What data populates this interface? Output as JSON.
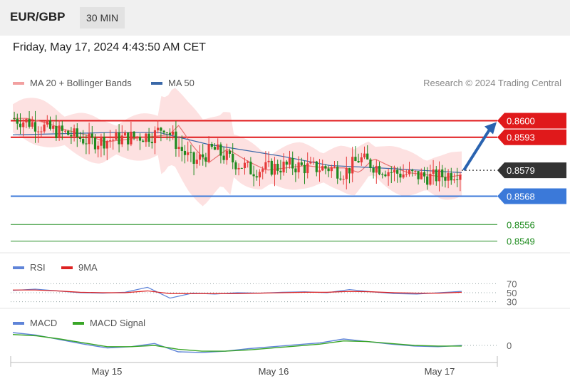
{
  "header": {
    "pair": "EUR/GBP",
    "timeframe": "30 MIN"
  },
  "date": "Friday, May 17, 2024 4:43:50 AM CET",
  "legend": {
    "ma20": "MA 20 + Bollinger Bands",
    "ma50": "MA 50",
    "copyright": "Research © 2024 Trading Central",
    "rsi": "RSI",
    "rsi_ma": "9MA",
    "macd": "MACD",
    "macd_signal": "MACD Signal"
  },
  "colors": {
    "resistance": "#e0191b",
    "support": "#3b79d9",
    "target": "#1f8c1f",
    "ma20": "#e87272",
    "ma50": "#3a68a8",
    "bands": "#fde1e1",
    "up": "#e63a3a",
    "down": "#1f8a1f",
    "arrow": "#2a63b0",
    "rsi": "#5f84d8",
    "rsi_ma": "#dd2222",
    "macd": "#5f84d8",
    "macd_signal": "#3aa628"
  },
  "chart_data": [
    {
      "type": "candlestick",
      "instrument": "EUR/GBP",
      "x_labels": [
        "May 15",
        "May 16",
        "May 17"
      ],
      "price_range": [
        0.8544,
        0.8608
      ],
      "current_price": "0.8579",
      "levels": [
        {
          "value": "0.8600",
          "kind": "resistance"
        },
        {
          "value": "0.8593",
          "kind": "resistance"
        },
        {
          "value": "0.8568",
          "kind": "support"
        },
        {
          "value": "0.8556",
          "kind": "target"
        },
        {
          "value": "0.8549",
          "kind": "target"
        }
      ],
      "price_path": [
        {
          "x": 0,
          "y": 0.8601
        },
        {
          "x": 0.04,
          "y": 0.8599
        },
        {
          "x": 0.08,
          "y": 0.8596
        },
        {
          "x": 0.12,
          "y": 0.8594
        },
        {
          "x": 0.16,
          "y": 0.8591
        },
        {
          "x": 0.2,
          "y": 0.8592
        },
        {
          "x": 0.24,
          "y": 0.8593
        },
        {
          "x": 0.29,
          "y": 0.8594
        },
        {
          "x": 0.31,
          "y": 0.8598
        },
        {
          "x": 0.34,
          "y": 0.8589
        },
        {
          "x": 0.37,
          "y": 0.8582
        },
        {
          "x": 0.41,
          "y": 0.8588
        },
        {
          "x": 0.45,
          "y": 0.8583
        },
        {
          "x": 0.49,
          "y": 0.8579
        },
        {
          "x": 0.53,
          "y": 0.858
        },
        {
          "x": 0.57,
          "y": 0.8581
        },
        {
          "x": 0.61,
          "y": 0.858
        },
        {
          "x": 0.65,
          "y": 0.858
        },
        {
          "x": 0.68,
          "y": 0.8578
        },
        {
          "x": 0.71,
          "y": 0.8584
        },
        {
          "x": 0.74,
          "y": 0.8581
        },
        {
          "x": 0.78,
          "y": 0.8578
        },
        {
          "x": 0.82,
          "y": 0.8577
        },
        {
          "x": 0.86,
          "y": 0.8576
        },
        {
          "x": 0.89,
          "y": 0.8577
        },
        {
          "x": 0.92,
          "y": 0.8579
        }
      ],
      "ma50_path": [
        {
          "x": 0,
          "y": 0.8594
        },
        {
          "x": 0.2,
          "y": 0.8595
        },
        {
          "x": 0.3,
          "y": 0.8595
        },
        {
          "x": 0.4,
          "y": 0.859
        },
        {
          "x": 0.55,
          "y": 0.8585
        },
        {
          "x": 0.65,
          "y": 0.8581
        },
        {
          "x": 0.75,
          "y": 0.858
        },
        {
          "x": 0.92,
          "y": 0.8578
        }
      ]
    },
    {
      "type": "line",
      "name": "RSI",
      "ticks": [
        "70",
        "50",
        "30"
      ],
      "ylim": [
        20,
        80
      ],
      "series": [
        {
          "name": "RSI",
          "values": [
            55,
            58,
            54,
            50,
            49,
            51,
            62,
            38,
            49,
            47,
            50,
            49,
            51,
            52,
            50,
            57,
            52,
            48,
            47,
            50,
            53
          ]
        },
        {
          "name": "9MA",
          "values": [
            56,
            56,
            54,
            51,
            50,
            50,
            54,
            48,
            48,
            48,
            48,
            49,
            50,
            51,
            51,
            53,
            52,
            50,
            49,
            49,
            51
          ]
        }
      ]
    },
    {
      "type": "line",
      "name": "MACD",
      "ticks": [
        "0"
      ],
      "series": [
        {
          "name": "MACD",
          "values": [
            2.0,
            1.6,
            0.9,
            0.2,
            -0.4,
            -0.2,
            0.3,
            -1.0,
            -1.1,
            -0.9,
            -0.5,
            -0.2,
            0.1,
            0.4,
            1.0,
            0.6,
            0.2,
            -0.1,
            -0.2,
            0.0
          ]
        },
        {
          "name": "MACD Signal",
          "values": [
            1.7,
            1.5,
            1.0,
            0.4,
            -0.2,
            -0.2,
            0.0,
            -0.6,
            -0.9,
            -0.9,
            -0.7,
            -0.4,
            -0.1,
            0.2,
            0.7,
            0.6,
            0.3,
            0.0,
            -0.1,
            -0.1
          ]
        }
      ]
    }
  ]
}
